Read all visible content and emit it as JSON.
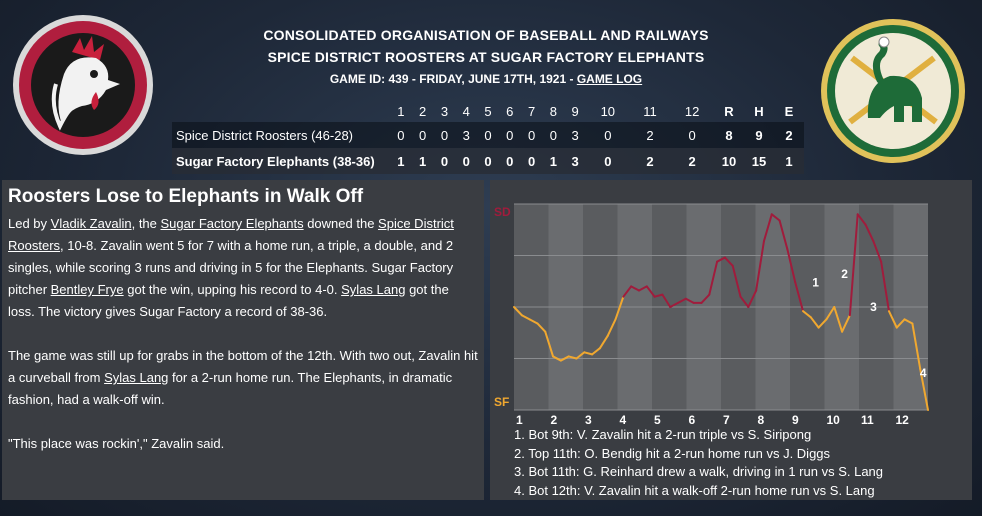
{
  "header": {
    "line1": "CONSOLIDATED ORGANISATION OF BASEBALL AND RAILWAYS",
    "line2": "SPICE DISTRICT ROOSTERS AT SUGAR FACTORY ELEPHANTS",
    "game_info": "GAME ID: 439 - FRIDAY, JUNE 17TH, 1921 - ",
    "game_log_link": "GAME LOG"
  },
  "linescore": {
    "innings": [
      "1",
      "2",
      "3",
      "4",
      "5",
      "6",
      "7",
      "8",
      "9",
      "10",
      "11",
      "12"
    ],
    "totals_headers": [
      "R",
      "H",
      "E"
    ],
    "teams": [
      {
        "name": "Spice District Roosters (46-28)",
        "runs": [
          "0",
          "0",
          "0",
          "3",
          "0",
          "0",
          "0",
          "0",
          "3",
          "0",
          "2",
          "0"
        ],
        "totals": [
          "8",
          "9",
          "2"
        ]
      },
      {
        "name": "Sugar Factory Elephants (38-36)",
        "runs": [
          "1",
          "1",
          "0",
          "0",
          "0",
          "0",
          "0",
          "1",
          "3",
          "0",
          "2",
          "2"
        ],
        "totals": [
          "10",
          "15",
          "1"
        ]
      }
    ]
  },
  "story": {
    "headline": "Roosters Lose to Elephants in Walk Off",
    "p1": {
      "t1": "Led by ",
      "l1": "Vladik Zavalin",
      "t2": ", the ",
      "l2": "Sugar Factory Elephants",
      "t3": " downed the ",
      "l3": "Spice District Roosters",
      "t4": ", 10-8. Zavalin went 5 for 7 with a home run, a triple, a double, and 2 singles, while scoring 3 runs and driving in 5 for the Elephants. Sugar Factory pitcher ",
      "l4": "Bentley Frye",
      "t5": " got the win, upping his record to 4-0. ",
      "l5": "Sylas Lang",
      "t6": " got the loss. The victory gives Sugar Factory a record of 38-36."
    },
    "p2": {
      "t1": "The game was still up for grabs in the bottom of the 12th. With two out, Zavalin hit a curveball from ",
      "l1": "Sylas Lang",
      "t2": " for a 2-run home run. The Elephants, in dramatic fashion, had a walk-off win."
    },
    "p3": "\"This place was rockin',\" Zavalin said."
  },
  "chart_data": {
    "type": "line",
    "top_label": "SD",
    "bottom_label": "SF",
    "x_tick_labels": [
      "1",
      "2",
      "3",
      "4",
      "5",
      "6",
      "7",
      "8",
      "9",
      "10",
      "11",
      "12"
    ],
    "ylim": [
      0,
      1
    ],
    "colors": {
      "roosters": "#a01c3c",
      "elephants": "#f0a830"
    },
    "series": [
      {
        "values": [
          0.5,
          0.46,
          0.44,
          0.42,
          0.38,
          0.26,
          0.24,
          0.26,
          0.25,
          0.28,
          0.27,
          0.3,
          0.36,
          0.44,
          0.55,
          0.6,
          0.58,
          0.6,
          0.55,
          0.56,
          0.5,
          0.52,
          0.54,
          0.52,
          0.52,
          0.56,
          0.72,
          0.74,
          0.7,
          0.55,
          0.5,
          0.58,
          0.82,
          0.95,
          0.92,
          0.78,
          0.62,
          0.48,
          0.45,
          0.4,
          0.44,
          0.5,
          0.38,
          0.46,
          0.95,
          0.9,
          0.82,
          0.72,
          0.48,
          0.4,
          0.44,
          0.42,
          0.2,
          0.0
        ]
      }
    ],
    "annotations": [
      {
        "label": "1",
        "x": 0.73,
        "y": 0.6
      },
      {
        "label": "2",
        "x": 0.8,
        "y": 0.64
      },
      {
        "label": "3",
        "x": 0.87,
        "y": 0.48
      },
      {
        "label": "4",
        "x": 0.99,
        "y": 0.16
      }
    ]
  },
  "notes": [
    "1. Bot 9th: V. Zavalin hit a 2-run triple vs S. Siripong",
    "2. Top 11th: O. Bendig hit a 2-run home run vs J. Diggs",
    "3. Bot 11th: G. Reinhard drew a walk, driving in 1 run vs S. Lang",
    "4. Bot 12th: V. Zavalin hit a walk-off 2-run home run vs S. Lang"
  ]
}
